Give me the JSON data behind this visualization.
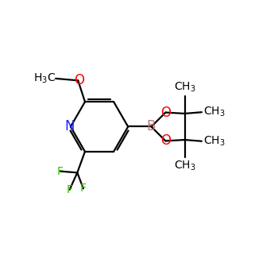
{
  "background_color": "#ffffff",
  "fig_size": [
    3.5,
    3.5
  ],
  "dpi": 100,
  "bond_color": "#000000",
  "bond_width": 1.6,
  "atom_colors": {
    "N": "#2222ff",
    "O": "#ff0000",
    "F": "#33bb00",
    "B": "#bb7777",
    "C": "#000000"
  },
  "font_size_atom": 10,
  "font_size_ch3": 9
}
